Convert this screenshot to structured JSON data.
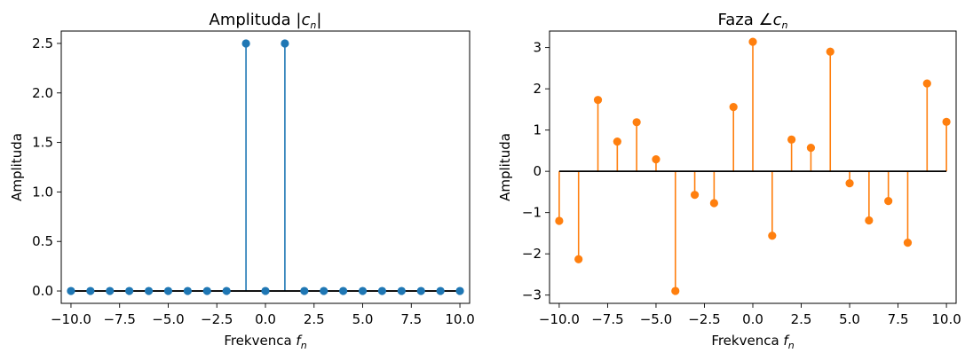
{
  "chart_data": [
    {
      "type": "stem",
      "title_prefix": "Amplituda |",
      "title_var": "c",
      "title_sub": "n",
      "title_suffix": "|",
      "xlabel_prefix": "Frekvenca ",
      "xlabel_var": "f",
      "xlabel_sub": "n",
      "ylabel": "Amplituda",
      "xlim": [
        -10.5,
        10.5
      ],
      "ylim": [
        -0.125,
        2.625
      ],
      "xticks": [
        -10,
        -7.5,
        -5,
        -2.5,
        0,
        2.5,
        5,
        7.5,
        10
      ],
      "xtick_labels": [
        "−10.0",
        "−7.5",
        "−5.0",
        "−2.5",
        "0.0",
        "2.5",
        "5.0",
        "7.5",
        "10.0"
      ],
      "yticks": [
        0,
        0.5,
        1,
        1.5,
        2,
        2.5
      ],
      "ytick_labels": [
        "0.0",
        "0.5",
        "1.0",
        "1.5",
        "2.0",
        "2.5"
      ],
      "x": [
        -10,
        -9,
        -8,
        -7,
        -6,
        -5,
        -4,
        -3,
        -2,
        -1,
        0,
        1,
        2,
        3,
        4,
        5,
        6,
        7,
        8,
        9,
        10
      ],
      "values": [
        0,
        0,
        0,
        0,
        0,
        0,
        0,
        0,
        0,
        2.5,
        0,
        2.5,
        0,
        0,
        0,
        0,
        0,
        0,
        0,
        0,
        0
      ],
      "color": "#1f77b4",
      "baseline_color": "#000000"
    },
    {
      "type": "stem",
      "title_prefix": "Faza ∠",
      "title_var": "c",
      "title_sub": "n",
      "title_suffix": "",
      "xlabel_prefix": "Frekvenca ",
      "xlabel_var": "f",
      "xlabel_sub": "n",
      "ylabel": "Amplituda",
      "xlim": [
        -10.5,
        10.5
      ],
      "ylim": [
        -3.2,
        3.4
      ],
      "xticks": [
        -10,
        -7.5,
        -5,
        -2.5,
        0,
        2.5,
        5,
        7.5,
        10
      ],
      "xtick_labels": [
        "−10.0",
        "−7.5",
        "−5.0",
        "−2.5",
        "0.0",
        "2.5",
        "5.0",
        "7.5",
        "10.0"
      ],
      "yticks": [
        -3,
        -2,
        -1,
        0,
        1,
        2,
        3
      ],
      "ytick_labels": [
        "−3",
        "−2",
        "−1",
        "0",
        "1",
        "2",
        "3"
      ],
      "x": [
        -10,
        -9,
        -8,
        -7,
        -6,
        -5,
        -4,
        -3,
        -2,
        -1,
        0,
        1,
        2,
        3,
        4,
        5,
        6,
        7,
        8,
        9,
        10
      ],
      "values": [
        -1.2,
        -2.13,
        1.73,
        0.72,
        1.19,
        0.29,
        -2.9,
        -0.57,
        -0.77,
        1.56,
        3.14,
        -1.56,
        0.77,
        0.57,
        2.9,
        -0.29,
        -1.19,
        -0.72,
        -1.73,
        2.13,
        1.2
      ],
      "color": "#ff7f0e",
      "baseline_color": "#000000"
    }
  ]
}
